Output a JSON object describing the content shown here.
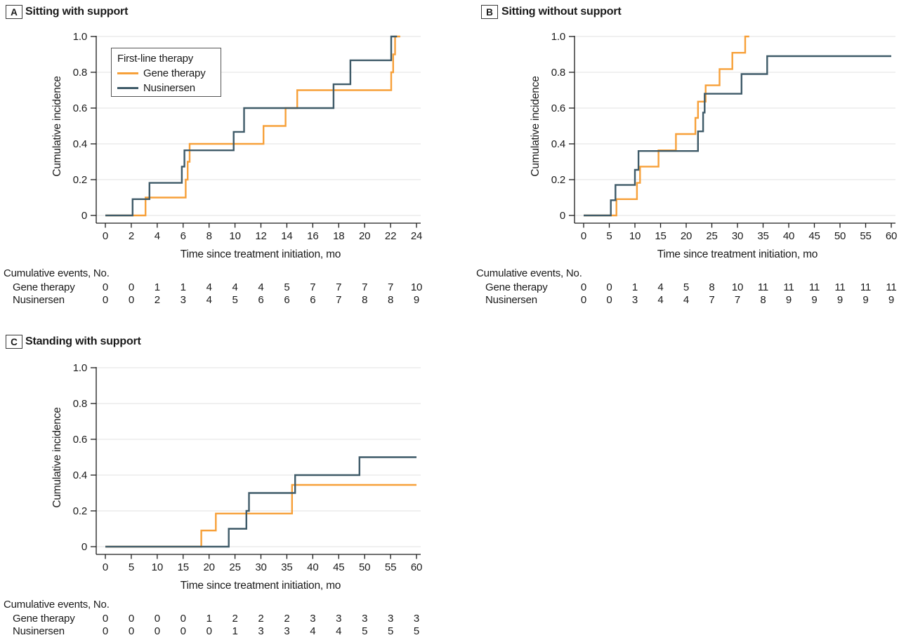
{
  "figure": {
    "legend": {
      "title": "First-line therapy",
      "entries": [
        {
          "label": "Gene therapy",
          "color": "#F7A039"
        },
        {
          "label": "Nusinersen",
          "color": "#3E5A68"
        }
      ]
    },
    "colors": {
      "gene_therapy": "#F7A039",
      "nusinersen": "#3E5A68",
      "grid": "#E8E8E8",
      "axis": "#1a1a1a",
      "text": "#1a1a1a"
    }
  },
  "chart_data": [
    {
      "panel_letter": "A",
      "title": "Sitting with support",
      "type": "line",
      "subtype": "cumulative-incidence-step",
      "xlabel": "Time since treatment initiation, mo",
      "ylabel": "Cumulative incidence",
      "xlim": [
        0,
        24
      ],
      "ylim": [
        0,
        1.0
      ],
      "xticks": [
        0,
        2,
        4,
        6,
        8,
        10,
        12,
        14,
        16,
        18,
        20,
        22,
        24
      ],
      "yticks": [
        0,
        0.2,
        0.4,
        0.6,
        0.8,
        1.0
      ],
      "ytick_labels": [
        "0",
        "0.2",
        "0.4",
        "0.6",
        "0.8",
        "1.0"
      ],
      "grid": true,
      "legend_position": "top-left",
      "series": [
        {
          "name": "Gene therapy",
          "color": "#F7A039",
          "end_x": 22.75,
          "steps": [
            [
              3.1,
              0.1
            ],
            [
              6.2,
              0.2
            ],
            [
              6.35,
              0.3
            ],
            [
              6.5,
              0.4
            ],
            [
              12.2,
              0.5
            ],
            [
              13.9,
              0.6
            ],
            [
              14.8,
              0.7
            ],
            [
              22.05,
              0.8
            ],
            [
              22.2,
              0.9
            ],
            [
              22.35,
              1.0
            ]
          ]
        },
        {
          "name": "Nusinersen",
          "color": "#3E5A68",
          "end_x": 22.5,
          "steps": [
            [
              2.1,
              0.091
            ],
            [
              3.4,
              0.182
            ],
            [
              5.9,
              0.273
            ],
            [
              6.1,
              0.364
            ],
            [
              9.9,
              0.467
            ],
            [
              10.7,
              0.6
            ],
            [
              17.6,
              0.733
            ],
            [
              18.9,
              0.867
            ],
            [
              22.05,
              1.0
            ]
          ]
        }
      ],
      "events_table": {
        "label": "Cumulative events, No.",
        "rows": [
          {
            "name": "Gene therapy",
            "values": [
              0,
              0,
              1,
              1,
              4,
              4,
              4,
              5,
              7,
              7,
              7,
              7,
              10
            ]
          },
          {
            "name": "Nusinersen",
            "values": [
              0,
              0,
              2,
              3,
              4,
              5,
              6,
              6,
              6,
              7,
              8,
              8,
              9
            ]
          }
        ]
      }
    },
    {
      "panel_letter": "B",
      "title": "Sitting without support",
      "type": "line",
      "subtype": "cumulative-incidence-step",
      "xlabel": "Time since treatment initiation, mo",
      "ylabel": "Cumulative incidence",
      "xlim": [
        0,
        60
      ],
      "ylim": [
        0,
        1.0
      ],
      "xticks": [
        0,
        5,
        10,
        15,
        20,
        25,
        30,
        35,
        40,
        45,
        50,
        55,
        60
      ],
      "yticks": [
        0,
        0.2,
        0.4,
        0.6,
        0.8,
        1.0
      ],
      "ytick_labels": [
        "0",
        "0.2",
        "0.4",
        "0.6",
        "0.8",
        "1.0"
      ],
      "grid": true,
      "legend_position": null,
      "series": [
        {
          "name": "Gene therapy",
          "color": "#F7A039",
          "end_x": 32.3,
          "steps": [
            [
              6.4,
              0.091
            ],
            [
              10.4,
              0.182
            ],
            [
              11.0,
              0.273
            ],
            [
              14.6,
              0.364
            ],
            [
              18.0,
              0.455
            ],
            [
              21.8,
              0.545
            ],
            [
              22.3,
              0.636
            ],
            [
              23.8,
              0.727
            ],
            [
              26.5,
              0.818
            ],
            [
              29.0,
              0.909
            ],
            [
              31.5,
              1.0
            ]
          ]
        },
        {
          "name": "Nusinersen",
          "color": "#3E5A68",
          "end_x": 60,
          "steps": [
            [
              5.3,
              0.085
            ],
            [
              6.2,
              0.17
            ],
            [
              10.0,
              0.255
            ],
            [
              10.7,
              0.36
            ],
            [
              22.3,
              0.47
            ],
            [
              23.3,
              0.575
            ],
            [
              23.6,
              0.68
            ],
            [
              30.8,
              0.79
            ],
            [
              35.8,
              0.89
            ]
          ]
        }
      ],
      "events_table": {
        "label": "Cumulative events, No.",
        "rows": [
          {
            "name": "Gene therapy",
            "values": [
              0,
              0,
              1,
              4,
              5,
              8,
              10,
              11,
              11,
              11,
              11,
              11,
              11
            ]
          },
          {
            "name": "Nusinersen",
            "values": [
              0,
              0,
              3,
              4,
              4,
              7,
              7,
              8,
              9,
              9,
              9,
              9,
              9
            ]
          }
        ]
      }
    },
    {
      "panel_letter": "C",
      "title": "Standing with support",
      "type": "line",
      "subtype": "cumulative-incidence-step",
      "xlabel": "Time since treatment initiation, mo",
      "ylabel": "Cumulative incidence",
      "xlim": [
        0,
        60
      ],
      "ylim": [
        0,
        1.0
      ],
      "xticks": [
        0,
        5,
        10,
        15,
        20,
        25,
        30,
        35,
        40,
        45,
        50,
        55,
        60
      ],
      "yticks": [
        0,
        0.2,
        0.4,
        0.6,
        0.8,
        1.0
      ],
      "ytick_labels": [
        "0",
        "0.2",
        "0.4",
        "0.6",
        "0.8",
        "1.0"
      ],
      "grid": true,
      "legend_position": null,
      "series": [
        {
          "name": "Gene therapy",
          "color": "#F7A039",
          "end_x": 60,
          "steps": [
            [
              18.5,
              0.09
            ],
            [
              21.3,
              0.185
            ],
            [
              36.0,
              0.345
            ]
          ]
        },
        {
          "name": "Nusinersen",
          "color": "#3E5A68",
          "end_x": 60,
          "steps": [
            [
              23.8,
              0.1
            ],
            [
              27.2,
              0.2
            ],
            [
              27.7,
              0.3
            ],
            [
              36.6,
              0.4
            ],
            [
              49.0,
              0.5
            ]
          ]
        }
      ],
      "events_table": {
        "label": "Cumulative events, No.",
        "rows": [
          {
            "name": "Gene therapy",
            "values": [
              0,
              0,
              0,
              0,
              1,
              2,
              2,
              2,
              3,
              3,
              3,
              3,
              3
            ]
          },
          {
            "name": "Nusinersen",
            "values": [
              0,
              0,
              0,
              0,
              0,
              1,
              3,
              3,
              4,
              4,
              5,
              5,
              5
            ]
          }
        ]
      }
    }
  ]
}
